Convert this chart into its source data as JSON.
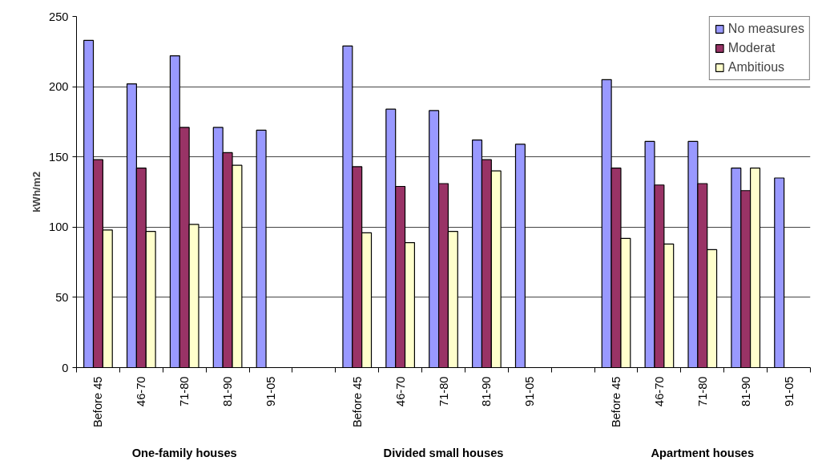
{
  "chart_data": {
    "type": "bar",
    "ylabel": "kWh/m2",
    "categories": [
      "Before 45",
      "46-70",
      "71-80",
      "81-90",
      "91-05",
      null,
      "Before 45",
      "46-70",
      "71-80",
      "81-90",
      "91-05",
      null,
      "Before 45",
      "46-70",
      "71-80",
      "81-90",
      "91-05"
    ],
    "series": [
      {
        "name": "No measures",
        "color": "#9999ff",
        "values": [
          233,
          202,
          222,
          171,
          169,
          null,
          229,
          184,
          183,
          162,
          159,
          null,
          205,
          161,
          161,
          142,
          135
        ]
      },
      {
        "name": "Moderat",
        "color": "#993366",
        "values": [
          148,
          142,
          171,
          153,
          null,
          null,
          143,
          129,
          131,
          148,
          null,
          null,
          142,
          130,
          131,
          126,
          null
        ]
      },
      {
        "name": "Ambitious",
        "color": "#ffffcc",
        "values": [
          98,
          97,
          102,
          144,
          null,
          null,
          96,
          89,
          97,
          140,
          null,
          null,
          92,
          88,
          84,
          142,
          null
        ]
      }
    ],
    "annotations": [
      "One-family houses",
      "Divided small houses",
      "Apartment houses"
    ],
    "ylim": [
      0,
      250
    ],
    "yticks": [
      0,
      50,
      100,
      150,
      200,
      250
    ],
    "grid": "y",
    "legend": "top right"
  }
}
